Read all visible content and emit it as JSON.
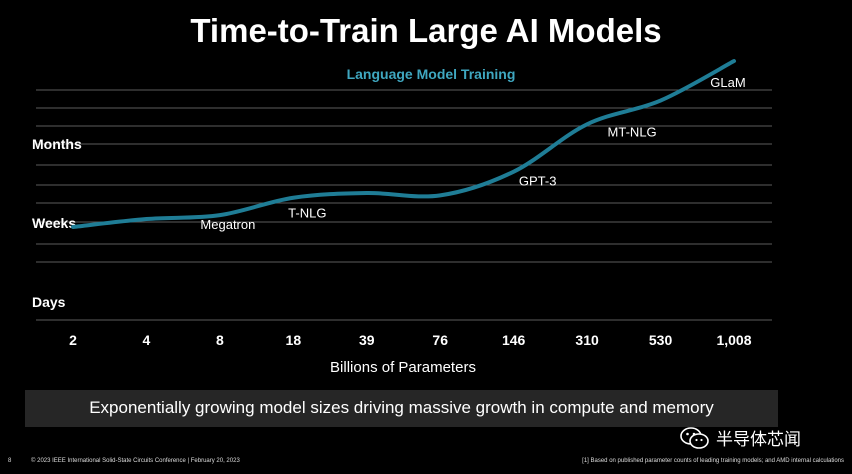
{
  "title": "Time-to-Train Large AI Models",
  "subtitle": "Language Model Training",
  "banner": "Exponentially growing model sizes driving massive growth in compute and memory",
  "footer": {
    "page": "8",
    "left": "© 2023 IEEE International Solid-State Circuits Conference  |  February 20, 2023",
    "right": "[1] Based on published parameter counts of leading training models; and AMD internal calculations"
  },
  "watermark": "半导体芯闻",
  "colors": {
    "line": "#1f7d96",
    "subtitle": "#3fa7c0",
    "grid": "#7a7a7a",
    "banner": "#262626"
  },
  "chart_data": {
    "type": "line",
    "title": "Language Model Training",
    "xlabel": "Billions of Parameters",
    "categories": [
      "2",
      "4",
      "8",
      "18",
      "39",
      "76",
      "146",
      "310",
      "530",
      "1,008"
    ],
    "y_categories": [
      "Days",
      "Weeks",
      "Months"
    ],
    "ylim": [
      0,
      3
    ],
    "grid": true,
    "series": [
      {
        "values": [
          0.95,
          1.05,
          1.1,
          1.32,
          1.38,
          1.35,
          1.65,
          2.25,
          2.55,
          3.05
        ]
      }
    ],
    "annotations": [
      {
        "label": "Megatron",
        "category": "8"
      },
      {
        "label": "T-NLG",
        "category": "18"
      },
      {
        "label": "GPT-3",
        "category": "146"
      },
      {
        "label": "MT-NLG",
        "category": "310"
      },
      {
        "label": "GLaM",
        "category": "1,008"
      }
    ]
  }
}
